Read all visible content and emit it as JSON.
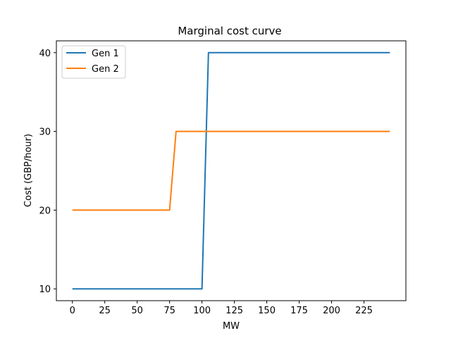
{
  "chart_data": {
    "type": "line",
    "title": "Marginal cost curve",
    "xlabel": "MW",
    "ylabel": "Cost (GBP/hour)",
    "xlim": [
      -12.35,
      257.35
    ],
    "ylim": [
      8.5,
      41.5
    ],
    "xticks": [
      0,
      25,
      50,
      75,
      100,
      125,
      150,
      175,
      200,
      225
    ],
    "yticks": [
      10,
      20,
      30,
      40
    ],
    "legend_position": "top-left",
    "grid": false,
    "series": [
      {
        "name": "Gen 1",
        "color": "#1f77b4",
        "x": [
          0,
          5,
          10,
          15,
          20,
          25,
          30,
          35,
          40,
          45,
          50,
          55,
          60,
          65,
          70,
          75,
          80,
          85,
          90,
          95,
          100,
          105,
          110,
          115,
          120,
          125,
          130,
          135,
          140,
          145,
          150,
          155,
          160,
          165,
          170,
          175,
          180,
          185,
          190,
          195,
          200,
          205,
          210,
          215,
          220,
          225,
          230,
          235,
          240,
          245
        ],
        "y": [
          10,
          10,
          10,
          10,
          10,
          10,
          10,
          10,
          10,
          10,
          10,
          10,
          10,
          10,
          10,
          10,
          10,
          10,
          10,
          10,
          10,
          40,
          40,
          40,
          40,
          40,
          40,
          40,
          40,
          40,
          40,
          40,
          40,
          40,
          40,
          40,
          40,
          40,
          40,
          40,
          40,
          40,
          40,
          40,
          40,
          40,
          40,
          40,
          40,
          40
        ]
      },
      {
        "name": "Gen 2",
        "color": "#ff7f0e",
        "x": [
          0,
          5,
          10,
          15,
          20,
          25,
          30,
          35,
          40,
          45,
          50,
          55,
          60,
          65,
          70,
          75,
          80,
          85,
          90,
          95,
          100,
          105,
          110,
          115,
          120,
          125,
          130,
          135,
          140,
          145,
          150,
          155,
          160,
          165,
          170,
          175,
          180,
          185,
          190,
          195,
          200,
          205,
          210,
          215,
          220,
          225,
          230,
          235,
          240,
          245
        ],
        "y": [
          20,
          20,
          20,
          20,
          20,
          20,
          20,
          20,
          20,
          20,
          20,
          20,
          20,
          20,
          20,
          20,
          30,
          30,
          30,
          30,
          30,
          30,
          30,
          30,
          30,
          30,
          30,
          30,
          30,
          30,
          30,
          30,
          30,
          30,
          30,
          30,
          30,
          30,
          30,
          30,
          30,
          30,
          30,
          30,
          30,
          30,
          30,
          30,
          30,
          30
        ]
      }
    ]
  }
}
